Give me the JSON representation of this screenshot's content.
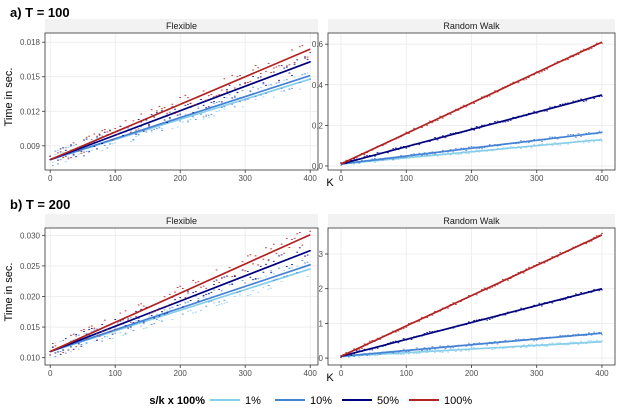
{
  "legend": {
    "title": "s/k x 100%",
    "entries": [
      {
        "label": "1%",
        "color": "#87ceeb"
      },
      {
        "label": "10%",
        "color": "#4682d4"
      },
      {
        "label": "50%",
        "color": "#00007f"
      },
      {
        "label": "100%",
        "color": "#b22222"
      }
    ]
  },
  "chart_data": [
    {
      "type": "scatter",
      "title": "a) T = 100",
      "panel": "Flexible",
      "xlabel": "K",
      "ylabel": "Time in sec.",
      "xlim": [
        -8,
        412
      ],
      "ylim": [
        0.0069,
        0.0188
      ],
      "xticks": [
        0,
        100,
        200,
        300,
        400
      ],
      "xtick_labels": [
        "0",
        "100",
        "200",
        "300",
        "400"
      ],
      "yticks": [
        0.009,
        0.012,
        0.015,
        0.018
      ],
      "ytick_labels": [
        "0.009",
        "0.012",
        "0.015",
        "0.018"
      ],
      "series": [
        {
          "name": "1%",
          "color": "#87ceeb",
          "fit": [
            [
              0,
              0.0078
            ],
            [
              400,
              0.0148
            ]
          ]
        },
        {
          "name": "10%",
          "color": "#4682d4",
          "fit": [
            [
              0,
              0.0078
            ],
            [
              400,
              0.0151
            ]
          ]
        },
        {
          "name": "50%",
          "color": "#00007f",
          "fit": [
            [
              0,
              0.0078
            ],
            [
              400,
              0.0163
            ]
          ]
        },
        {
          "name": "100%",
          "color": "#b22222",
          "fit": [
            [
              0,
              0.0078
            ],
            [
              400,
              0.0174
            ]
          ]
        }
      ]
    },
    {
      "type": "scatter",
      "title": "a) T = 100",
      "panel": "Random Walk",
      "xlabel": "K",
      "ylabel": "Time in sec.",
      "xlim": [
        -20,
        420
      ],
      "ylim": [
        -0.02,
        0.655
      ],
      "xticks": [
        0,
        100,
        200,
        300,
        400
      ],
      "xtick_labels": [
        "0",
        "100",
        "200",
        "300",
        "400"
      ],
      "yticks": [
        0.0,
        0.2,
        0.4,
        0.6
      ],
      "ytick_labels": [
        "0.0",
        "0.2",
        "0.4",
        "0.6"
      ],
      "series": [
        {
          "name": "1%",
          "color": "#87ceeb",
          "fit": [
            [
              0,
              0.01
            ],
            [
              400,
              0.13
            ]
          ]
        },
        {
          "name": "10%",
          "color": "#4682d4",
          "fit": [
            [
              0,
              0.01
            ],
            [
              400,
              0.165
            ]
          ]
        },
        {
          "name": "50%",
          "color": "#00007f",
          "fit": [
            [
              0,
              0.01
            ],
            [
              400,
              0.35
            ]
          ]
        },
        {
          "name": "100%",
          "color": "#b22222",
          "fit": [
            [
              0,
              0.01
            ],
            [
              400,
              0.61
            ]
          ]
        }
      ]
    },
    {
      "type": "scatter",
      "title": "b) T = 200",
      "panel": "Flexible",
      "xlabel": "K",
      "ylabel": "Time in sec.",
      "xlim": [
        -8,
        412
      ],
      "ylim": [
        0.0088,
        0.0312
      ],
      "xticks": [
        0,
        100,
        200,
        300,
        400
      ],
      "xtick_labels": [
        "0",
        "100",
        "200",
        "300",
        "400"
      ],
      "yticks": [
        0.01,
        0.015,
        0.02,
        0.025,
        0.03
      ],
      "ytick_labels": [
        "0.010",
        "0.015",
        "0.020",
        "0.025",
        "0.030"
      ],
      "series": [
        {
          "name": "1%",
          "color": "#87ceeb",
          "fit": [
            [
              0,
              0.011
            ],
            [
              400,
              0.0245
            ]
          ]
        },
        {
          "name": "10%",
          "color": "#4682d4",
          "fit": [
            [
              0,
              0.011
            ],
            [
              400,
              0.0252
            ]
          ]
        },
        {
          "name": "50%",
          "color": "#00007f",
          "fit": [
            [
              0,
              0.011
            ],
            [
              400,
              0.0275
            ]
          ]
        },
        {
          "name": "100%",
          "color": "#b22222",
          "fit": [
            [
              0,
              0.011
            ],
            [
              400,
              0.0301
            ]
          ]
        }
      ]
    },
    {
      "type": "scatter",
      "title": "b) T = 200",
      "panel": "Random Walk",
      "xlabel": "K",
      "ylabel": "Time in sec.",
      "xlim": [
        -20,
        420
      ],
      "ylim": [
        -0.2,
        3.75
      ],
      "xticks": [
        0,
        100,
        200,
        300,
        400
      ],
      "xtick_labels": [
        "0",
        "100",
        "200",
        "300",
        "400"
      ],
      "yticks": [
        0,
        1,
        2,
        3
      ],
      "ytick_labels": [
        "0",
        "1",
        "2",
        "3"
      ],
      "series": [
        {
          "name": "1%",
          "color": "#87ceeb",
          "fit": [
            [
              0,
              0.05
            ],
            [
              400,
              0.47
            ]
          ]
        },
        {
          "name": "10%",
          "color": "#4682d4",
          "fit": [
            [
              0,
              0.05
            ],
            [
              400,
              0.72
            ]
          ]
        },
        {
          "name": "50%",
          "color": "#00007f",
          "fit": [
            [
              0,
              0.05
            ],
            [
              400,
              2.0
            ]
          ]
        },
        {
          "name": "100%",
          "color": "#b22222",
          "fit": [
            [
              0,
              0.05
            ],
            [
              400,
              3.55
            ]
          ]
        }
      ]
    }
  ]
}
